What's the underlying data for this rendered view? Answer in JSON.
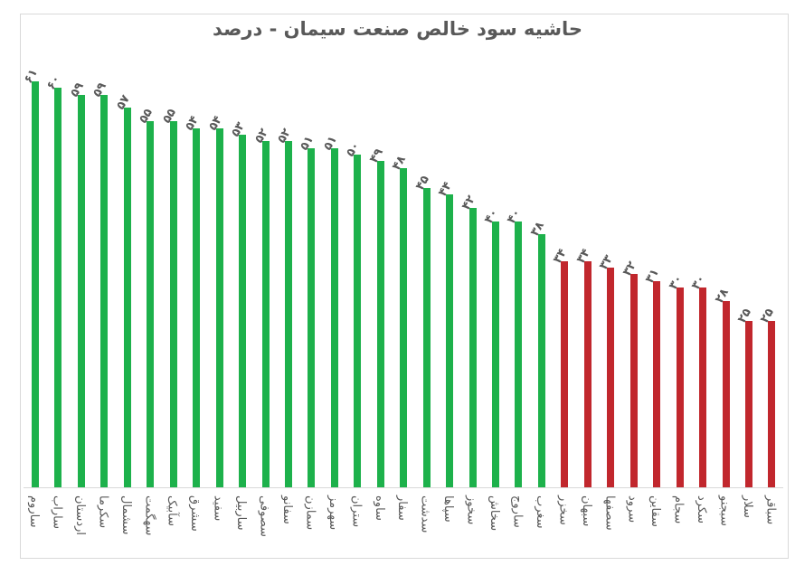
{
  "chart_data": {
    "type": "bar",
    "title": "حاشیه سود خالص صنعت سیمان - درصد",
    "xlabel": "",
    "ylabel": "",
    "ylim": [
      0,
      61
    ],
    "grid": false,
    "legend": "none",
    "colors": {
      "above_threshold": "#1db14b",
      "below_threshold": "#c1272d"
    },
    "categories": [
      "ساروم",
      "ساراب",
      "اردستان",
      "سکرما",
      "سشمال",
      "سهگمت",
      "سآبیک",
      "سشرق",
      "سفید",
      "ساربیل",
      "سصوفی",
      "سفانو",
      "سمازن",
      "سهرمز",
      "ستران",
      "ساوه",
      "سفار",
      "سدشت",
      "سپاها",
      "سخوز",
      "سخاش",
      "ساروج",
      "سغرب",
      "سخزر",
      "سبهان",
      "سصفها",
      "سرود",
      "سقاین",
      "سجام",
      "سکرد",
      "سبجنو",
      "سلار",
      "سباقر"
    ],
    "values": [
      61,
      60,
      59,
      59,
      57,
      55,
      55,
      54,
      54,
      53,
      52,
      52,
      51,
      51,
      50,
      49,
      48,
      45,
      44,
      42,
      40,
      40,
      38,
      34,
      34,
      33,
      32,
      31,
      30,
      30,
      28,
      25,
      25
    ],
    "value_labels": [
      "۶۱",
      "۶۰",
      "۵۹",
      "۵۹",
      "۵۷",
      "۵۵",
      "۵۵",
      "۵۴",
      "۵۴",
      "۵۳",
      "۵۲",
      "۵۲",
      "۵۱",
      "۵۱",
      "۵۰",
      "۴۹",
      "۴۸",
      "۴۵",
      "۴۴",
      "۴۲",
      "۴۰",
      "۴۰",
      "۳۸",
      "۳۴",
      "۳۴",
      "۳۳",
      "۳۲",
      "۳۱",
      "۳۰",
      "۳۰",
      "۲۸",
      "۲۵",
      "۲۵"
    ],
    "bar_colors": [
      "green",
      "green",
      "green",
      "green",
      "green",
      "green",
      "green",
      "green",
      "green",
      "green",
      "green",
      "green",
      "green",
      "green",
      "green",
      "green",
      "green",
      "green",
      "green",
      "green",
      "green",
      "green",
      "green",
      "red",
      "red",
      "red",
      "red",
      "red",
      "red",
      "red",
      "red",
      "red",
      "red"
    ]
  }
}
